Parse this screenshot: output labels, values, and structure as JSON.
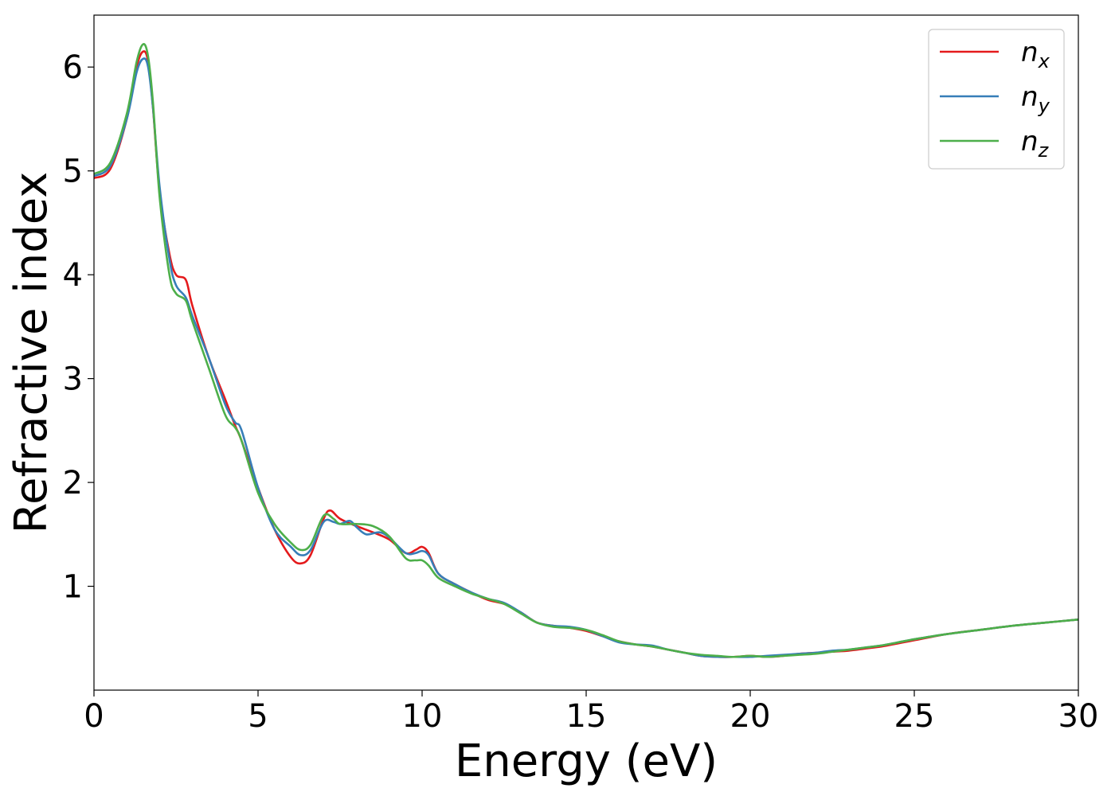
{
  "chart_data": {
    "type": "line",
    "title": "",
    "xlabel": "Energy (eV)",
    "ylabel": "Refractive index",
    "xlim": [
      0,
      30
    ],
    "ylim": [
      0,
      6.5
    ],
    "xticks": [
      0,
      5,
      10,
      15,
      20,
      25,
      30
    ],
    "xtick_labels": [
      "0",
      "5",
      "10",
      "15",
      "20",
      "25",
      "30"
    ],
    "yticks": [
      1,
      2,
      3,
      4,
      5,
      6
    ],
    "ytick_labels": [
      "1",
      "2",
      "3",
      "4",
      "5",
      "6"
    ],
    "grid": false,
    "legend_position": "top-right",
    "series": [
      {
        "name": "n",
        "subscript": "x",
        "color": "#e41a1c",
        "points": [
          [
            0,
            4.93
          ],
          [
            0.5,
            5.02
          ],
          [
            1.0,
            5.5
          ],
          [
            1.3,
            6.0
          ],
          [
            1.5,
            6.15
          ],
          [
            1.65,
            6.05
          ],
          [
            1.8,
            5.6
          ],
          [
            2.0,
            4.8
          ],
          [
            2.3,
            4.2
          ],
          [
            2.5,
            4.0
          ],
          [
            2.8,
            3.95
          ],
          [
            3.0,
            3.7
          ],
          [
            3.5,
            3.2
          ],
          [
            4.0,
            2.8
          ],
          [
            4.3,
            2.55
          ],
          [
            4.5,
            2.4
          ],
          [
            5.0,
            1.95
          ],
          [
            5.5,
            1.55
          ],
          [
            6.0,
            1.28
          ],
          [
            6.3,
            1.22
          ],
          [
            6.6,
            1.3
          ],
          [
            7.0,
            1.65
          ],
          [
            7.2,
            1.73
          ],
          [
            7.5,
            1.65
          ],
          [
            8.0,
            1.58
          ],
          [
            8.5,
            1.52
          ],
          [
            9.0,
            1.45
          ],
          [
            9.5,
            1.32
          ],
          [
            9.8,
            1.35
          ],
          [
            10.0,
            1.38
          ],
          [
            10.2,
            1.32
          ],
          [
            10.5,
            1.12
          ],
          [
            11.0,
            1.02
          ],
          [
            11.5,
            0.94
          ],
          [
            12.0,
            0.87
          ],
          [
            12.5,
            0.83
          ],
          [
            13.0,
            0.75
          ],
          [
            13.5,
            0.65
          ],
          [
            14.0,
            0.62
          ],
          [
            14.5,
            0.6
          ],
          [
            15.0,
            0.57
          ],
          [
            15.5,
            0.52
          ],
          [
            16.0,
            0.47
          ],
          [
            16.5,
            0.44
          ],
          [
            17.0,
            0.42
          ],
          [
            17.5,
            0.39
          ],
          [
            18.0,
            0.36
          ],
          [
            18.5,
            0.33
          ],
          [
            19.0,
            0.32
          ],
          [
            19.5,
            0.32
          ],
          [
            20.0,
            0.33
          ],
          [
            20.5,
            0.32
          ],
          [
            21.0,
            0.33
          ],
          [
            21.5,
            0.35
          ],
          [
            22.0,
            0.36
          ],
          [
            22.5,
            0.37
          ],
          [
            23.0,
            0.38
          ],
          [
            23.5,
            0.4
          ],
          [
            24.0,
            0.42
          ],
          [
            24.5,
            0.45
          ],
          [
            25.0,
            0.48
          ],
          [
            26.0,
            0.54
          ],
          [
            27.0,
            0.58
          ],
          [
            28.0,
            0.62
          ],
          [
            29.0,
            0.65
          ],
          [
            30.0,
            0.68
          ]
        ]
      },
      {
        "name": "n",
        "subscript": "y",
        "color": "#377eb8",
        "points": [
          [
            0,
            4.95
          ],
          [
            0.5,
            5.05
          ],
          [
            1.0,
            5.5
          ],
          [
            1.3,
            5.95
          ],
          [
            1.5,
            6.08
          ],
          [
            1.65,
            6.0
          ],
          [
            1.8,
            5.6
          ],
          [
            2.0,
            4.85
          ],
          [
            2.3,
            4.15
          ],
          [
            2.5,
            3.9
          ],
          [
            2.8,
            3.78
          ],
          [
            3.0,
            3.6
          ],
          [
            3.5,
            3.2
          ],
          [
            4.0,
            2.75
          ],
          [
            4.3,
            2.58
          ],
          [
            4.5,
            2.5
          ],
          [
            5.0,
            1.95
          ],
          [
            5.5,
            1.55
          ],
          [
            6.0,
            1.38
          ],
          [
            6.3,
            1.3
          ],
          [
            6.6,
            1.35
          ],
          [
            7.0,
            1.62
          ],
          [
            7.3,
            1.62
          ],
          [
            7.5,
            1.6
          ],
          [
            7.8,
            1.63
          ],
          [
            8.0,
            1.57
          ],
          [
            8.3,
            1.5
          ],
          [
            8.7,
            1.52
          ],
          [
            9.0,
            1.47
          ],
          [
            9.5,
            1.32
          ],
          [
            9.8,
            1.32
          ],
          [
            10.0,
            1.34
          ],
          [
            10.2,
            1.3
          ],
          [
            10.5,
            1.12
          ],
          [
            11.0,
            1.02
          ],
          [
            11.5,
            0.94
          ],
          [
            12.0,
            0.88
          ],
          [
            12.5,
            0.84
          ],
          [
            13.0,
            0.75
          ],
          [
            13.5,
            0.65
          ],
          [
            14.0,
            0.62
          ],
          [
            14.5,
            0.61
          ],
          [
            15.0,
            0.58
          ],
          [
            15.5,
            0.52
          ],
          [
            16.0,
            0.46
          ],
          [
            16.5,
            0.44
          ],
          [
            17.0,
            0.43
          ],
          [
            17.5,
            0.39
          ],
          [
            18.0,
            0.36
          ],
          [
            18.5,
            0.33
          ],
          [
            19.0,
            0.32
          ],
          [
            19.5,
            0.32
          ],
          [
            20.0,
            0.32
          ],
          [
            20.5,
            0.33
          ],
          [
            21.0,
            0.34
          ],
          [
            21.5,
            0.35
          ],
          [
            22.0,
            0.36
          ],
          [
            22.5,
            0.38
          ],
          [
            23.0,
            0.39
          ],
          [
            23.5,
            0.41
          ],
          [
            24.0,
            0.43
          ],
          [
            24.5,
            0.46
          ],
          [
            25.0,
            0.49
          ],
          [
            26.0,
            0.54
          ],
          [
            27.0,
            0.58
          ],
          [
            28.0,
            0.62
          ],
          [
            29.0,
            0.65
          ],
          [
            30.0,
            0.68
          ]
        ]
      },
      {
        "name": "n",
        "subscript": "z",
        "color": "#4daf4a",
        "points": [
          [
            0,
            4.97
          ],
          [
            0.5,
            5.08
          ],
          [
            1.0,
            5.55
          ],
          [
            1.3,
            6.05
          ],
          [
            1.5,
            6.22
          ],
          [
            1.65,
            6.1
          ],
          [
            1.8,
            5.65
          ],
          [
            2.0,
            4.75
          ],
          [
            2.3,
            4.0
          ],
          [
            2.5,
            3.82
          ],
          [
            2.8,
            3.75
          ],
          [
            3.0,
            3.55
          ],
          [
            3.5,
            3.1
          ],
          [
            4.0,
            2.65
          ],
          [
            4.3,
            2.53
          ],
          [
            4.5,
            2.4
          ],
          [
            5.0,
            1.9
          ],
          [
            5.5,
            1.6
          ],
          [
            6.0,
            1.42
          ],
          [
            6.3,
            1.35
          ],
          [
            6.6,
            1.4
          ],
          [
            7.0,
            1.68
          ],
          [
            7.3,
            1.65
          ],
          [
            7.5,
            1.6
          ],
          [
            8.0,
            1.6
          ],
          [
            8.5,
            1.58
          ],
          [
            9.0,
            1.48
          ],
          [
            9.5,
            1.27
          ],
          [
            9.8,
            1.25
          ],
          [
            10.0,
            1.25
          ],
          [
            10.2,
            1.2
          ],
          [
            10.5,
            1.08
          ],
          [
            11.0,
            1.0
          ],
          [
            11.5,
            0.93
          ],
          [
            12.0,
            0.88
          ],
          [
            12.5,
            0.83
          ],
          [
            13.0,
            0.74
          ],
          [
            13.5,
            0.65
          ],
          [
            14.0,
            0.61
          ],
          [
            14.5,
            0.6
          ],
          [
            15.0,
            0.58
          ],
          [
            15.5,
            0.53
          ],
          [
            16.0,
            0.47
          ],
          [
            16.5,
            0.44
          ],
          [
            17.0,
            0.42
          ],
          [
            17.5,
            0.39
          ],
          [
            18.0,
            0.36
          ],
          [
            18.5,
            0.34
          ],
          [
            19.0,
            0.33
          ],
          [
            19.5,
            0.32
          ],
          [
            20.0,
            0.33
          ],
          [
            20.5,
            0.32
          ],
          [
            21.0,
            0.33
          ],
          [
            21.5,
            0.34
          ],
          [
            22.0,
            0.35
          ],
          [
            22.5,
            0.37
          ],
          [
            23.0,
            0.39
          ],
          [
            23.5,
            0.41
          ],
          [
            24.0,
            0.43
          ],
          [
            24.5,
            0.46
          ],
          [
            25.0,
            0.49
          ],
          [
            26.0,
            0.54
          ],
          [
            27.0,
            0.58
          ],
          [
            28.0,
            0.62
          ],
          [
            29.0,
            0.65
          ],
          [
            30.0,
            0.68
          ]
        ]
      }
    ]
  }
}
